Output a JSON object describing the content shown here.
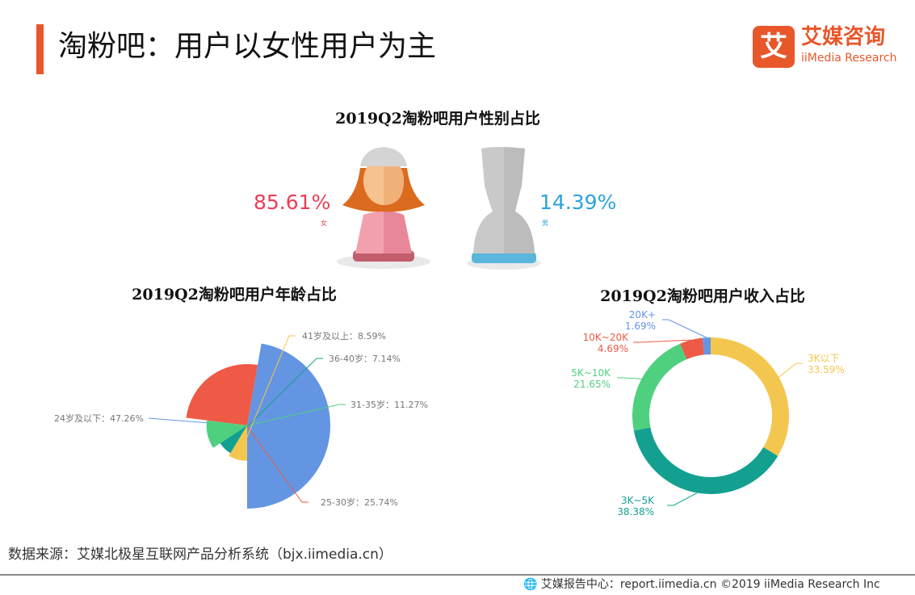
{
  "header": {
    "title": "淘粉吧：用户以女性用户为主",
    "brand_cn": "艾媒咨询",
    "brand_en": "iiMedia Research",
    "brand_logo_char": "艾",
    "accent_color": "#e8572a"
  },
  "chart_data": [
    {
      "type": "pictorial",
      "title": "2019Q2淘粉吧用户性别占比",
      "categories": [
        "女",
        "男"
      ],
      "values": [
        85.61,
        14.39
      ],
      "value_labels": [
        "85.61%",
        "14.39%"
      ],
      "colors": [
        "#e84058",
        "#2aa3dd"
      ],
      "icons": [
        "female-user-icon",
        "male-user-icon"
      ]
    },
    {
      "type": "pie",
      "variant": "rose",
      "title": "2019Q2淘粉吧用户年龄占比",
      "categories": [
        "24岁及以下",
        "25-30岁",
        "31-35岁",
        "36-40岁",
        "41岁及以上"
      ],
      "values": [
        47.26,
        25.74,
        11.27,
        7.14,
        8.59
      ],
      "labels": [
        "24岁及以下：47.26%",
        "25-30岁：25.74%",
        "31-35岁：11.27%",
        "36-40岁：7.14%",
        "41岁及以上：8.59%"
      ],
      "colors": [
        "#6495e2",
        "#ee5a45",
        "#4fd07f",
        "#14a091",
        "#f3c74f"
      ]
    },
    {
      "type": "pie",
      "variant": "donut",
      "title": "2019Q2淘粉吧用户收入占比",
      "categories": [
        "3K以下",
        "3K~5K",
        "5K~10K",
        "10K~20K",
        "20K+"
      ],
      "values": [
        33.59,
        38.38,
        21.65,
        4.69,
        1.69
      ],
      "value_labels": [
        "33.59%",
        "38.38%",
        "21.65%",
        "4.69%",
        "1.69%"
      ],
      "colors": [
        "#f3c74f",
        "#14a091",
        "#4fd07f",
        "#ee5a45",
        "#6495e2"
      ]
    }
  ],
  "footer": {
    "source": "数据来源：艾媒北极星互联网产品分析系统（bjx.iimedia.cn）",
    "copyright": "艾媒报告中心：report.iimedia.cn  ©2019  iiMedia Research  Inc",
    "globe_icon": "globe-icon"
  }
}
